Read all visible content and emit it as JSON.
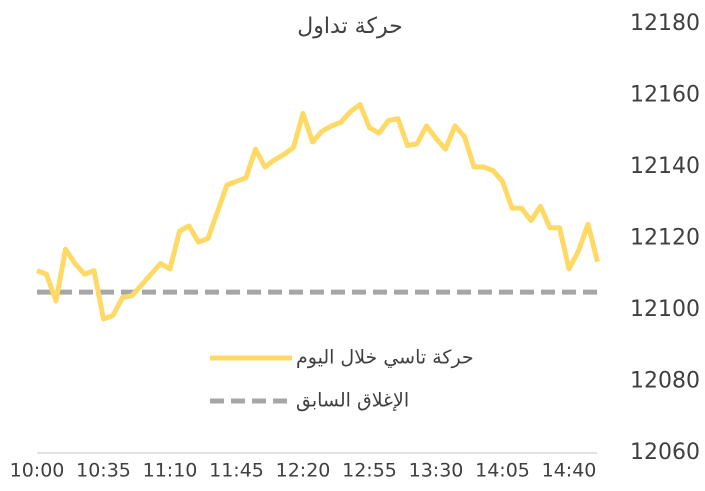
{
  "chart_data": {
    "type": "line",
    "title": "حركة تداول",
    "categories": [
      "10:00",
      null,
      null,
      null,
      null,
      null,
      null,
      "10:35",
      null,
      null,
      null,
      null,
      null,
      null,
      "11:10",
      null,
      null,
      null,
      null,
      null,
      null,
      "11:45",
      null,
      null,
      null,
      null,
      null,
      null,
      "12:20",
      null,
      null,
      null,
      null,
      null,
      null,
      "12:55",
      null,
      null,
      null,
      null,
      null,
      null,
      "13:30",
      null,
      null,
      null,
      null,
      null,
      null,
      "14:05",
      null,
      null,
      null,
      null,
      null,
      null,
      "14:40",
      null,
      null,
      null
    ],
    "series": [
      {
        "name": "حركة تاسي خلال اليوم",
        "color": "#ffd966",
        "dashed": false,
        "values": [
          12111,
          12110,
          12102.5,
          12117,
          12113,
          12110,
          12111,
          12097.5,
          12098.5,
          12103.5,
          12104,
          12107,
          12110,
          12113,
          12111.5,
          12122,
          12123.5,
          12119,
          12120,
          12127.5,
          12135,
          12136,
          12137,
          12145,
          12140,
          12142,
          12143.5,
          12145.5,
          12155,
          12147,
          12150,
          12151.5,
          12152.5,
          12155.5,
          12157.5,
          12151,
          12149.5,
          12153,
          12153.5,
          12146,
          12146.5,
          12151.5,
          12148,
          12145,
          12151.5,
          12148.5,
          12140,
          12140,
          12139,
          12136,
          12128.5,
          12128.5,
          12125,
          12129,
          12123,
          12123,
          12111.5,
          12116.5,
          12124,
          12113.5
        ]
      },
      {
        "name": "الإغلاق السابق",
        "color": "#a6a6a6",
        "dashed": true,
        "values": [
          12105,
          12105,
          12105,
          12105,
          12105,
          12105,
          12105,
          12105,
          12105,
          12105,
          12105,
          12105,
          12105,
          12105,
          12105,
          12105,
          12105,
          12105,
          12105,
          12105,
          12105,
          12105,
          12105,
          12105,
          12105,
          12105,
          12105,
          12105,
          12105,
          12105,
          12105,
          12105,
          12105,
          12105,
          12105,
          12105,
          12105,
          12105,
          12105,
          12105,
          12105,
          12105,
          12105,
          12105,
          12105,
          12105,
          12105,
          12105,
          12105,
          12105,
          12105,
          12105,
          12105,
          12105,
          12105,
          12105,
          12105,
          12105,
          12105,
          12105
        ]
      }
    ],
    "ylim": [
      12060,
      12180
    ],
    "yticks": [
      12060,
      12080,
      12100,
      12120,
      12140,
      12160,
      12180
    ],
    "grid": false
  }
}
